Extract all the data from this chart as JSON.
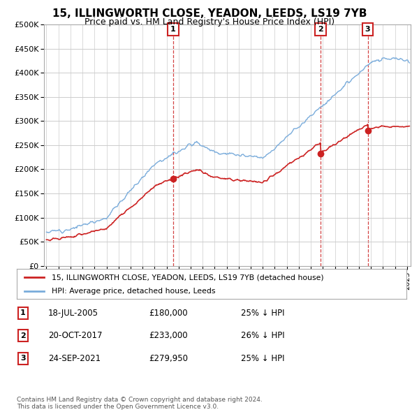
{
  "title": "15, ILLINGWORTH CLOSE, YEADON, LEEDS, LS19 7YB",
  "subtitle": "Price paid vs. HM Land Registry's House Price Index (HPI)",
  "ylim": [
    0,
    500000
  ],
  "yticks": [
    0,
    50000,
    100000,
    150000,
    200000,
    250000,
    300000,
    350000,
    400000,
    450000,
    500000
  ],
  "xlim_start": 1994.8,
  "xlim_end": 2025.3,
  "sale_dates": [
    2005.54,
    2017.8,
    2021.73
  ],
  "sale_prices": [
    180000,
    233000,
    279950
  ],
  "sale_labels": [
    "1",
    "2",
    "3"
  ],
  "legend_label_red": "15, ILLINGWORTH CLOSE, YEADON, LEEDS, LS19 7YB (detached house)",
  "legend_label_blue": "HPI: Average price, detached house, Leeds",
  "transaction_rows": [
    {
      "label": "1",
      "date": "18-JUL-2005",
      "price": "£180,000",
      "change": "25% ↓ HPI"
    },
    {
      "label": "2",
      "date": "20-OCT-2017",
      "price": "£233,000",
      "change": "26% ↓ HPI"
    },
    {
      "label": "3",
      "date": "24-SEP-2021",
      "price": "£279,950",
      "change": "25% ↓ HPI"
    }
  ],
  "footer": "Contains HM Land Registry data © Crown copyright and database right 2024.\nThis data is licensed under the Open Government Licence v3.0.",
  "red_color": "#cc2222",
  "blue_color": "#7aacdb",
  "box_color": "#cc2222",
  "background_color": "#ffffff",
  "grid_color": "#cccccc",
  "title_fontsize": 11,
  "subtitle_fontsize": 9
}
